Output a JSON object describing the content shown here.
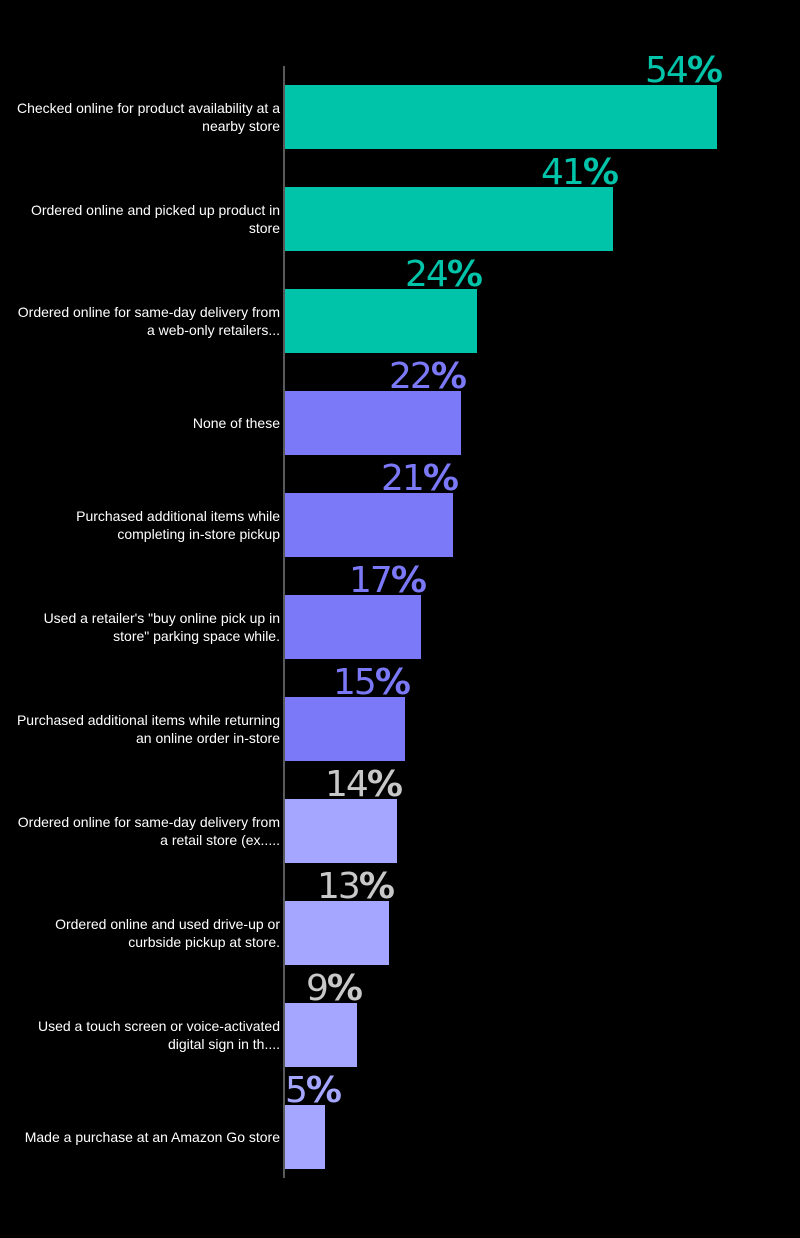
{
  "chart_data": {
    "type": "bar",
    "orientation": "horizontal",
    "title": "",
    "xlabel": "",
    "ylabel": "",
    "xlim": [
      0,
      54
    ],
    "grid": false,
    "legend": "none",
    "value_suffix": "%",
    "categories": [
      "Checked online for product availability at a nearby store",
      "Ordered online and picked up product in store",
      "Ordered online for same-day delivery from a web-only retailers...",
      "None of these",
      "Purchased additional items while completing in-store pickup",
      "Used a retailer's \"buy online pick up in store\" parking space while.",
      "Purchased additional items while returning an online order in-store",
      "Ordered online for same-day delivery from a retail store (ex.....",
      "Ordered online and used drive-up or curbside pickup at store.",
      "Used a touch screen or voice-activated digital sign in th....",
      "Made a purchase at an Amazon Go store"
    ],
    "values": [
      54,
      41,
      24,
      22,
      21,
      17,
      15,
      14,
      13,
      9,
      5
    ],
    "bar_colors": [
      "#00c4aa",
      "#00c4aa",
      "#00c4aa",
      "#7b79f7",
      "#7b79f7",
      "#7b79f7",
      "#7b79f7",
      "#a4a6ff",
      "#a4a6ff",
      "#a4a6ff",
      "#a4a6ff"
    ],
    "label_colors": [
      "#00c4aa",
      "#00c4aa",
      "#00c4aa",
      "#7b79f7",
      "#7b79f7",
      "#7b79f7",
      "#7b79f7",
      "#c8c8c8",
      "#c8c8c8",
      "#c8c8c8",
      "#a4a6ff"
    ]
  }
}
